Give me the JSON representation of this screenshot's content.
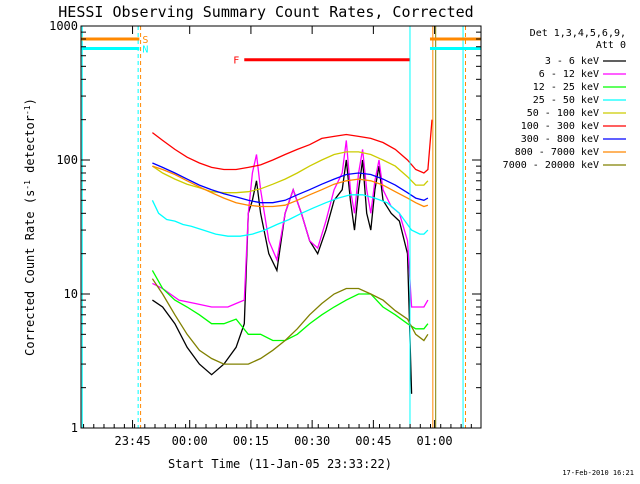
{
  "chart_data": {
    "type": "line",
    "title": "HESSI Observing Summary Count Rates, Corrected",
    "xlabel": "Start Time (11-Jan-05 23:33:22)",
    "ylabel_main": "Corrected Count Rate (s",
    "ylabel_sup1": "-1",
    "ylabel_mid": " detector",
    "ylabel_sup2": "-1",
    "ylabel_end": ")",
    "x_unit": "minutes after 23:33:22",
    "xlim": [
      0,
      98
    ],
    "ylim": [
      1,
      1000
    ],
    "y_scale": "log",
    "grid": false,
    "x_ticks": [
      {
        "x": 12.63,
        "label": "23:45"
      },
      {
        "x": 26.63,
        "label": "00:00"
      },
      {
        "x": 41.63,
        "label": "00:15"
      },
      {
        "x": 56.63,
        "label": "00:30"
      },
      {
        "x": 71.63,
        "label": "00:45"
      },
      {
        "x": 86.63,
        "label": "01:00"
      }
    ],
    "y_ticks": [
      {
        "y": 1,
        "label": "1"
      },
      {
        "y": 10,
        "label": "10"
      },
      {
        "y": 100,
        "label": "100"
      },
      {
        "y": 1000,
        "label": "1000"
      }
    ],
    "legend_position": "right",
    "legend_header": [
      "Det 1,3,4,5,6,9,",
      "Att 0"
    ],
    "series": [
      {
        "name": "3 - 6 keV",
        "color": "#000000",
        "points": [
          [
            17.5,
            9
          ],
          [
            20,
            8
          ],
          [
            23,
            6
          ],
          [
            26,
            4
          ],
          [
            29,
            3
          ],
          [
            32,
            2.5
          ],
          [
            35,
            3
          ],
          [
            38,
            4
          ],
          [
            40,
            6
          ],
          [
            41,
            40
          ],
          [
            42,
            50
          ],
          [
            43,
            70
          ],
          [
            44,
            40
          ],
          [
            46,
            20
          ],
          [
            48,
            15
          ],
          [
            50,
            40
          ],
          [
            52,
            60
          ],
          [
            54,
            40
          ],
          [
            56,
            25
          ],
          [
            58,
            20
          ],
          [
            60,
            30
          ],
          [
            62,
            50
          ],
          [
            64,
            60
          ],
          [
            65,
            100
          ],
          [
            66,
            50
          ],
          [
            67,
            30
          ],
          [
            68,
            60
          ],
          [
            69,
            100
          ],
          [
            70,
            40
          ],
          [
            71,
            30
          ],
          [
            72,
            60
          ],
          [
            73,
            90
          ],
          [
            74,
            50
          ],
          [
            76,
            40
          ],
          [
            78,
            35
          ],
          [
            80,
            20
          ],
          [
            81,
            1.8
          ]
        ]
      },
      {
        "name": "6 - 12 keV",
        "color": "#ff00ff",
        "points": [
          [
            17.5,
            12
          ],
          [
            20,
            11
          ],
          [
            24,
            9
          ],
          [
            28,
            8.5
          ],
          [
            32,
            8
          ],
          [
            36,
            8
          ],
          [
            38,
            8.5
          ],
          [
            40,
            9
          ],
          [
            41,
            40
          ],
          [
            42,
            80
          ],
          [
            43,
            110
          ],
          [
            44,
            60
          ],
          [
            46,
            25
          ],
          [
            48,
            18
          ],
          [
            50,
            40
          ],
          [
            52,
            60
          ],
          [
            54,
            40
          ],
          [
            56,
            25
          ],
          [
            58,
            22
          ],
          [
            60,
            35
          ],
          [
            62,
            60
          ],
          [
            64,
            80
          ],
          [
            65,
            140
          ],
          [
            66,
            60
          ],
          [
            67,
            40
          ],
          [
            68,
            80
          ],
          [
            69,
            120
          ],
          [
            70,
            60
          ],
          [
            71,
            40
          ],
          [
            72,
            70
          ],
          [
            73,
            100
          ],
          [
            74,
            60
          ],
          [
            76,
            45
          ],
          [
            78,
            40
          ],
          [
            80,
            25
          ],
          [
            81,
            8
          ],
          [
            84,
            8
          ],
          [
            85,
            9
          ]
        ]
      },
      {
        "name": "12 - 25 keV",
        "color": "#00ff00",
        "points": [
          [
            17.5,
            15
          ],
          [
            20,
            11
          ],
          [
            23,
            9
          ],
          [
            26,
            8
          ],
          [
            29,
            7
          ],
          [
            32,
            6
          ],
          [
            35,
            6
          ],
          [
            38,
            6.5
          ],
          [
            41,
            5
          ],
          [
            44,
            5
          ],
          [
            47,
            4.5
          ],
          [
            50,
            4.5
          ],
          [
            53,
            5
          ],
          [
            56,
            6
          ],
          [
            59,
            7
          ],
          [
            62,
            8
          ],
          [
            65,
            9
          ],
          [
            68,
            10
          ],
          [
            71,
            10
          ],
          [
            74,
            8
          ],
          [
            77,
            7
          ],
          [
            80,
            6
          ],
          [
            82,
            5.5
          ],
          [
            84,
            5.5
          ],
          [
            85,
            6
          ]
        ]
      },
      {
        "name": "25 - 50 keV",
        "color": "#00ffff",
        "points": [
          [
            17.5,
            50
          ],
          [
            19,
            40
          ],
          [
            21,
            36
          ],
          [
            23,
            35
          ],
          [
            25,
            33
          ],
          [
            27,
            32
          ],
          [
            30,
            30
          ],
          [
            33,
            28
          ],
          [
            36,
            27
          ],
          [
            39,
            27
          ],
          [
            42,
            28
          ],
          [
            45,
            30
          ],
          [
            48,
            33
          ],
          [
            51,
            36
          ],
          [
            54,
            40
          ],
          [
            57,
            44
          ],
          [
            60,
            48
          ],
          [
            63,
            52
          ],
          [
            66,
            55
          ],
          [
            69,
            55
          ],
          [
            72,
            52
          ],
          [
            75,
            48
          ],
          [
            78,
            40
          ],
          [
            81,
            30
          ],
          [
            83,
            28
          ],
          [
            84,
            28
          ],
          [
            85,
            30
          ]
        ]
      },
      {
        "name": "50 - 100 keV",
        "color": "#cccc00",
        "points": [
          [
            17.5,
            90
          ],
          [
            20,
            80
          ],
          [
            23,
            72
          ],
          [
            26,
            66
          ],
          [
            29,
            62
          ],
          [
            32,
            58
          ],
          [
            35,
            57
          ],
          [
            38,
            57
          ],
          [
            41,
            58
          ],
          [
            44,
            61
          ],
          [
            47,
            66
          ],
          [
            50,
            72
          ],
          [
            53,
            80
          ],
          [
            56,
            90
          ],
          [
            59,
            100
          ],
          [
            62,
            110
          ],
          [
            65,
            115
          ],
          [
            68,
            115
          ],
          [
            71,
            110
          ],
          [
            74,
            100
          ],
          [
            77,
            90
          ],
          [
            80,
            75
          ],
          [
            82,
            65
          ],
          [
            84,
            65
          ],
          [
            85,
            70
          ]
        ]
      },
      {
        "name": "100 - 300 keV",
        "color": "#ff0000",
        "points": [
          [
            17.5,
            160
          ],
          [
            20,
            140
          ],
          [
            23,
            120
          ],
          [
            26,
            105
          ],
          [
            29,
            95
          ],
          [
            32,
            88
          ],
          [
            35,
            85
          ],
          [
            38,
            85
          ],
          [
            41,
            88
          ],
          [
            44,
            92
          ],
          [
            47,
            100
          ],
          [
            50,
            110
          ],
          [
            53,
            120
          ],
          [
            56,
            130
          ],
          [
            59,
            145
          ],
          [
            62,
            150
          ],
          [
            65,
            155
          ],
          [
            68,
            150
          ],
          [
            71,
            145
          ],
          [
            74,
            135
          ],
          [
            77,
            120
          ],
          [
            80,
            100
          ],
          [
            82,
            85
          ],
          [
            84,
            80
          ],
          [
            85,
            85
          ],
          [
            86,
            200
          ]
        ]
      },
      {
        "name": "300 - 800 keV",
        "color": "#0000ff",
        "points": [
          [
            17.5,
            95
          ],
          [
            20,
            88
          ],
          [
            23,
            80
          ],
          [
            26,
            72
          ],
          [
            29,
            65
          ],
          [
            32,
            60
          ],
          [
            35,
            56
          ],
          [
            38,
            53
          ],
          [
            41,
            50
          ],
          [
            44,
            48
          ],
          [
            47,
            48
          ],
          [
            50,
            50
          ],
          [
            53,
            55
          ],
          [
            56,
            60
          ],
          [
            59,
            66
          ],
          [
            62,
            72
          ],
          [
            65,
            78
          ],
          [
            68,
            80
          ],
          [
            71,
            78
          ],
          [
            74,
            72
          ],
          [
            77,
            65
          ],
          [
            80,
            57
          ],
          [
            82,
            52
          ],
          [
            84,
            50
          ],
          [
            85,
            52
          ]
        ]
      },
      {
        "name": "800 - 7000 keV",
        "color": "#ff8800",
        "points": [
          [
            17.5,
            90
          ],
          [
            20,
            85
          ],
          [
            23,
            78
          ],
          [
            26,
            70
          ],
          [
            29,
            63
          ],
          [
            32,
            57
          ],
          [
            35,
            52
          ],
          [
            38,
            48
          ],
          [
            41,
            46
          ],
          [
            44,
            45
          ],
          [
            47,
            45
          ],
          [
            50,
            46
          ],
          [
            53,
            50
          ],
          [
            56,
            55
          ],
          [
            59,
            60
          ],
          [
            62,
            66
          ],
          [
            65,
            70
          ],
          [
            68,
            72
          ],
          [
            71,
            70
          ],
          [
            74,
            65
          ],
          [
            77,
            58
          ],
          [
            80,
            52
          ],
          [
            82,
            48
          ],
          [
            84,
            45
          ],
          [
            85,
            46
          ]
        ]
      },
      {
        "name": "7000 - 20000 keV",
        "color": "#808000",
        "points": [
          [
            17.5,
            13
          ],
          [
            20,
            10
          ],
          [
            23,
            7
          ],
          [
            26,
            5
          ],
          [
            29,
            3.8
          ],
          [
            32,
            3.3
          ],
          [
            35,
            3
          ],
          [
            38,
            3
          ],
          [
            41,
            3
          ],
          [
            44,
            3.3
          ],
          [
            47,
            3.8
          ],
          [
            50,
            4.5
          ],
          [
            53,
            5.5
          ],
          [
            56,
            7
          ],
          [
            59,
            8.5
          ],
          [
            62,
            10
          ],
          [
            65,
            11
          ],
          [
            68,
            11
          ],
          [
            71,
            10
          ],
          [
            74,
            9
          ],
          [
            77,
            7.5
          ],
          [
            80,
            6.5
          ],
          [
            82,
            5
          ],
          [
            84,
            4.5
          ],
          [
            85,
            5
          ]
        ]
      }
    ],
    "flags": [
      {
        "label": "S",
        "color": "#ff8800",
        "segments": [
          [
            0,
            14.3
          ],
          [
            85.5,
            98
          ]
        ],
        "level": 800
      },
      {
        "label": "N",
        "color": "#00ffff",
        "segments": [
          [
            0,
            14.3
          ],
          [
            85.5,
            98
          ]
        ],
        "level": 680
      },
      {
        "label": "F",
        "color": "#ff0000",
        "segments": [
          [
            40,
            80.5
          ]
        ],
        "level": 560
      }
    ],
    "vertical_markers": [
      {
        "x": 0.3,
        "color": "#00ffff",
        "style": "solid"
      },
      {
        "x": 14.0,
        "color": "#00ffff",
        "style": "dashed"
      },
      {
        "x": 14.6,
        "color": "#ff8800",
        "style": "dashed"
      },
      {
        "x": 80.6,
        "color": "#00ffff",
        "style": "solid"
      },
      {
        "x": 86.2,
        "color": "#ff8800",
        "style": "solid"
      },
      {
        "x": 86.9,
        "color": "#808000",
        "style": "solid"
      },
      {
        "x": 93.6,
        "color": "#00ffff",
        "style": "solid"
      },
      {
        "x": 94.2,
        "color": "#ff8800",
        "style": "dashed"
      }
    ],
    "footer_date": "17-Feb-2010 16:21"
  }
}
